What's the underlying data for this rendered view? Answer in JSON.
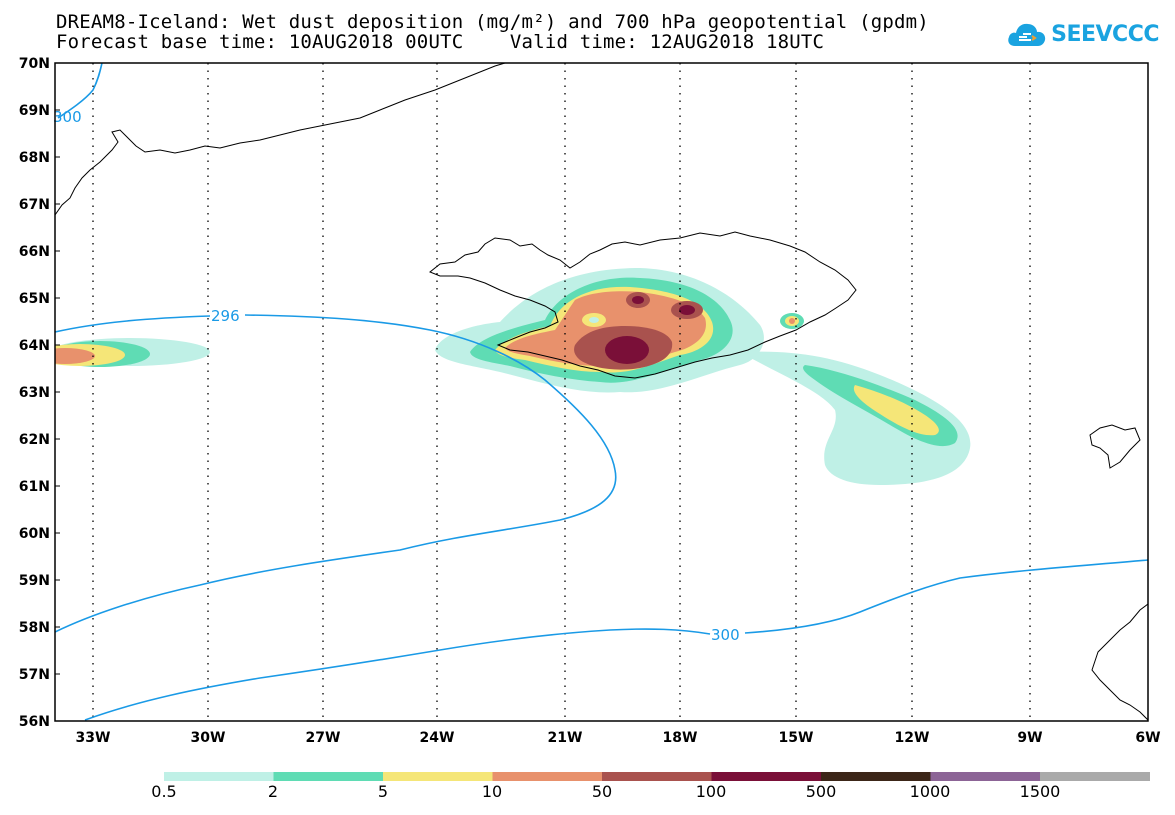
{
  "title": {
    "line1": "DREAM8-Iceland: Wet dust deposition (mg/m²) and 700 hPa geopotential (gpdm)",
    "line2": "Forecast base time: 10AUG2018 00UTC    Valid time: 12AUG2018 18UTC"
  },
  "logo": {
    "text": "SEEVCCC",
    "icon": "cloud-icon",
    "color": "#1aa3e0"
  },
  "map": {
    "lat_labels": [
      "70N",
      "69N",
      "68N",
      "67N",
      "66N",
      "65N",
      "64N",
      "63N",
      "62N",
      "61N",
      "60N",
      "59N",
      "58N",
      "57N",
      "56N"
    ],
    "lon_labels": [
      "33W",
      "30W",
      "27W",
      "24W",
      "21W",
      "18W",
      "15W",
      "12W",
      "9W",
      "6W"
    ],
    "contours": [
      {
        "label": "296",
        "color": "#1a9ae6"
      },
      {
        "label": "300",
        "color": "#1a9ae6"
      },
      {
        "label": "300",
        "color": "#1a9ae6"
      }
    ]
  },
  "colorbar": {
    "colors": [
      "#bff0e6",
      "#5fdcb4",
      "#f5e678",
      "#e8916c",
      "#a9524e",
      "#7a0f38",
      "#3c2618",
      "#8c6496",
      "#aaaaaa"
    ],
    "labels": [
      "0.5",
      "2",
      "5",
      "10",
      "50",
      "100",
      "500",
      "1000",
      "1500"
    ]
  }
}
